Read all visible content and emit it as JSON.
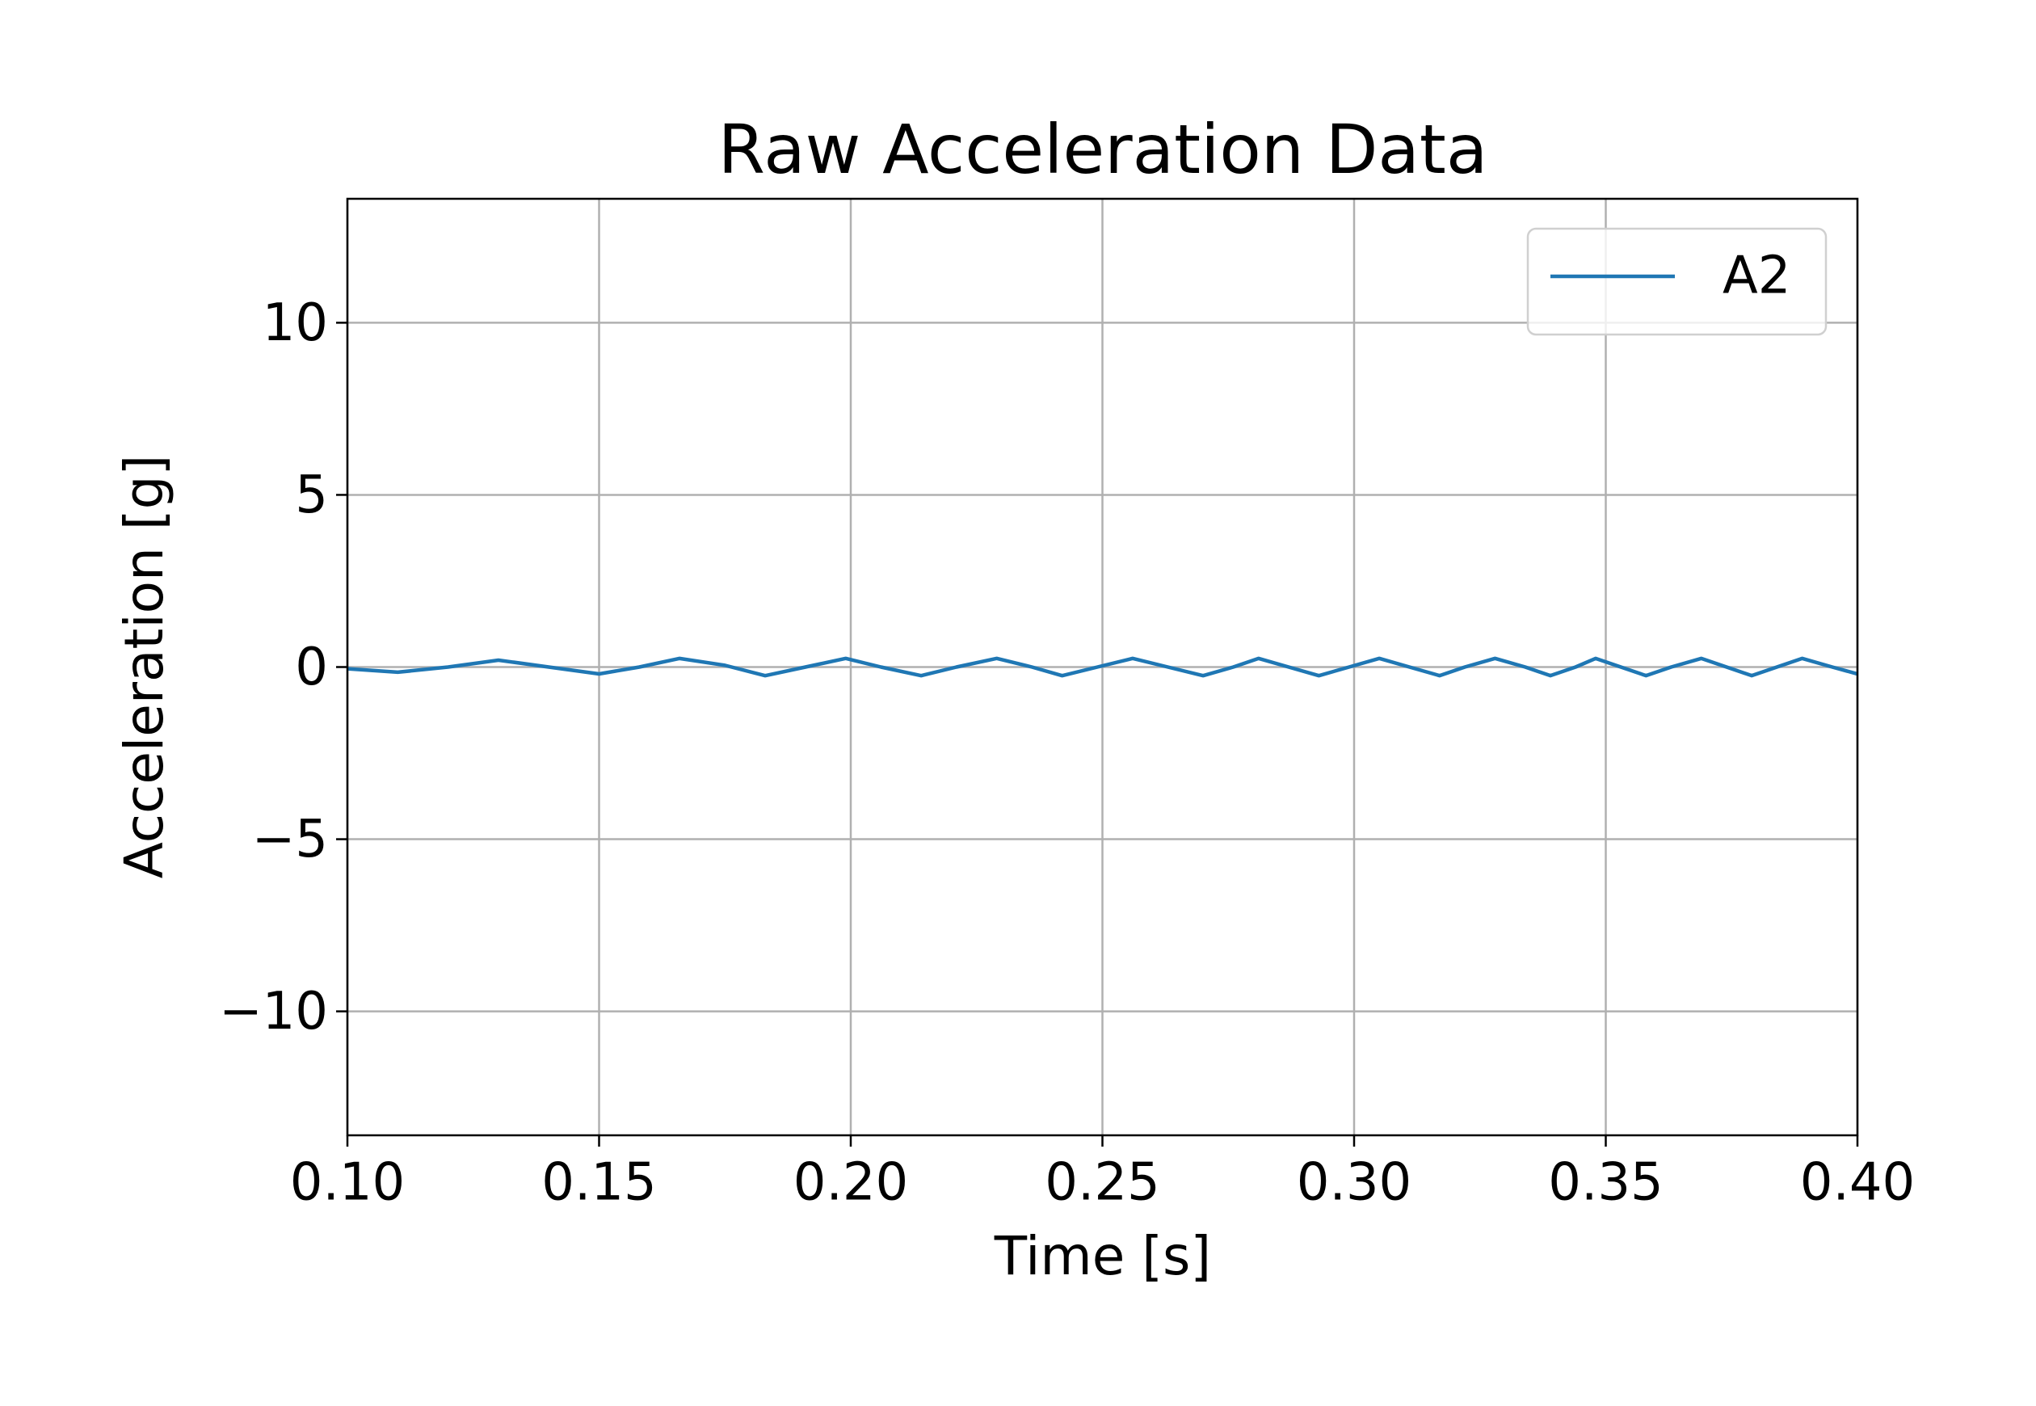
{
  "chart_data": {
    "type": "line",
    "title": "Raw Acceleration Data",
    "xlabel": "Time [s]",
    "ylabel": "Acceleration [g]",
    "x": [
      0.1,
      0.11,
      0.12,
      0.13,
      0.14,
      0.15,
      0.158,
      0.166,
      0.175,
      0.183,
      0.191,
      0.199,
      0.206,
      0.214,
      0.221,
      0.229,
      0.236,
      0.242,
      0.249,
      0.256,
      0.263,
      0.27,
      0.276,
      0.281,
      0.287,
      0.293,
      0.299,
      0.305,
      0.311,
      0.317,
      0.322,
      0.328,
      0.334,
      0.339,
      0.344,
      0.348,
      0.353,
      0.358,
      0.363,
      0.369,
      0.374,
      0.379,
      0.384,
      0.389,
      0.395,
      0.4
    ],
    "series": [
      {
        "name": "A2",
        "color": "#1f77b4",
        "values": [
          -0.05,
          -0.15,
          0.0,
          0.2,
          0.0,
          -0.2,
          0.0,
          0.25,
          0.05,
          -0.25,
          0.0,
          0.25,
          0.0,
          -0.25,
          0.0,
          0.25,
          0.0,
          -0.25,
          0.0,
          0.25,
          0.0,
          -0.25,
          0.0,
          0.25,
          0.0,
          -0.25,
          0.0,
          0.25,
          0.0,
          -0.25,
          0.0,
          0.25,
          0.0,
          -0.25,
          0.0,
          0.25,
          0.0,
          -0.25,
          0.0,
          0.25,
          0.0,
          -0.25,
          0.0,
          0.25,
          0.0,
          -0.2
        ]
      }
    ],
    "xlim": [
      0.1,
      0.4
    ],
    "xticks": [
      {
        "value": 0.1,
        "label": "0.10"
      },
      {
        "value": 0.15,
        "label": "0.15"
      },
      {
        "value": 0.2,
        "label": "0.20"
      },
      {
        "value": 0.25,
        "label": "0.25"
      },
      {
        "value": 0.3,
        "label": "0.30"
      },
      {
        "value": 0.35,
        "label": "0.35"
      },
      {
        "value": 0.4,
        "label": "0.40"
      }
    ],
    "ylim": [
      -13.6,
      13.6
    ],
    "yticks": [
      {
        "value": -10,
        "label": "−10"
      },
      {
        "value": -5,
        "label": "−5"
      },
      0,
      5,
      10
    ],
    "grid": true,
    "legend": "upper right"
  }
}
